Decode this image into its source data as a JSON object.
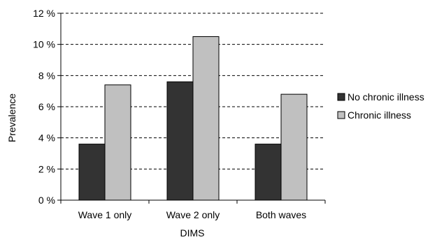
{
  "chart_data": {
    "type": "bar",
    "title": "",
    "xlabel": "DIMS",
    "ylabel": "Prevalence",
    "categories": [
      "Wave 1 only",
      "Wave 2 only",
      "Both waves"
    ],
    "series": [
      {
        "name": "No chronic illness",
        "values": [
          3.6,
          7.6,
          3.6
        ],
        "color": "#333333"
      },
      {
        "name": "Chronic illness",
        "values": [
          7.4,
          10.5,
          6.8
        ],
        "color": "#c0c0c0"
      }
    ],
    "ylim": [
      0,
      12
    ],
    "yticks": [
      0,
      2,
      4,
      6,
      8,
      10,
      12
    ],
    "ytick_labels": [
      "0 %",
      "2 %",
      "4 %",
      "6 %",
      "8 %",
      "10 %",
      "12 %"
    ],
    "grid": true,
    "grid_style": "dashed",
    "legend_position": "right"
  }
}
